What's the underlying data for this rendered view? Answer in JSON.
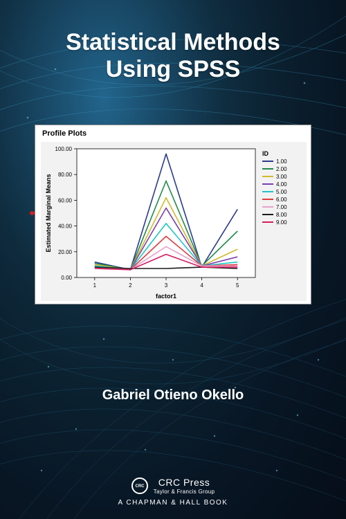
{
  "title_line1": "Statistical Methods",
  "title_line2": "Using SPSS",
  "author": "Gabriel Otieno Okello",
  "publisher": {
    "name": "CRC Press",
    "group": "Taylor & Francis Group",
    "imprint": "A CHAPMAN & HALL BOOK"
  },
  "chart": {
    "type": "line",
    "panel_title": "Profile Plots",
    "xlabel": "factor1",
    "ylabel": "Estimated Marginal Means",
    "x_categories": [
      "1",
      "2",
      "3",
      "4",
      "5"
    ],
    "ylim": [
      0,
      100
    ],
    "yticks": [
      0,
      20,
      40,
      60,
      80,
      100
    ],
    "ytick_labels": [
      "0.00",
      "20.00",
      "40.00",
      "60.00",
      "80.00",
      "100.00"
    ],
    "background_color": "#f2f2f2",
    "panel_color": "#ffffff",
    "grid_color": "#cccccc",
    "axis_color": "#000000",
    "label_fontsize": 9,
    "tick_fontsize": 8,
    "title_fontsize": 11,
    "line_width": 1.6,
    "legend": {
      "title": "ID",
      "items": [
        "1.00",
        "2.00",
        "3.00",
        "4.00",
        "5.00",
        "6.00",
        "7.00",
        "8.00",
        "9.00"
      ]
    },
    "series": [
      {
        "id": "1.00",
        "color": "#2a3b8f",
        "values": [
          12,
          6,
          96,
          8,
          53
        ]
      },
      {
        "id": "2.00",
        "color": "#1f8a4c",
        "values": [
          11,
          6,
          75,
          9,
          36
        ]
      },
      {
        "id": "3.00",
        "color": "#d1b82a",
        "values": [
          10,
          6,
          62,
          9,
          22
        ]
      },
      {
        "id": "4.00",
        "color": "#7a3fb0",
        "values": [
          9,
          6,
          54,
          9,
          16
        ]
      },
      {
        "id": "5.00",
        "color": "#20c4c4",
        "values": [
          9,
          6,
          42,
          9,
          12
        ]
      },
      {
        "id": "6.00",
        "color": "#e03c3c",
        "values": [
          8,
          6,
          32,
          9,
          10
        ]
      },
      {
        "id": "7.00",
        "color": "#e8a0c8",
        "values": [
          8,
          6,
          24,
          9,
          9
        ]
      },
      {
        "id": "8.00",
        "color": "#1a1a1a",
        "values": [
          8,
          7,
          7,
          8,
          7
        ]
      },
      {
        "id": "9.00",
        "color": "#d81b60",
        "values": [
          7,
          6,
          18,
          8,
          8
        ]
      }
    ]
  }
}
